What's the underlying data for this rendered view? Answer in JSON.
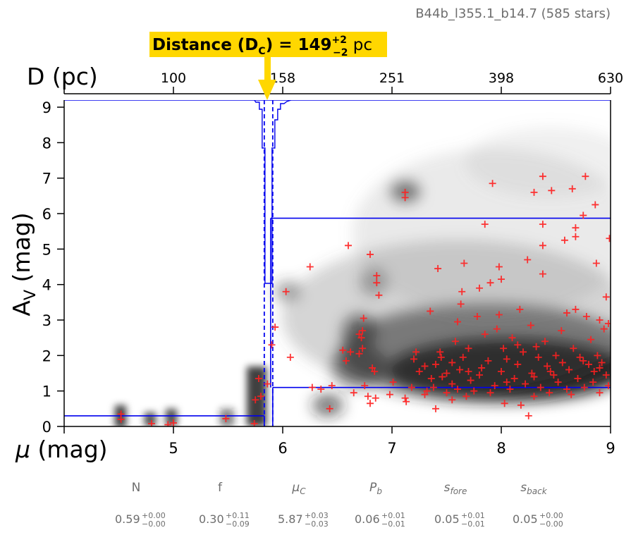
{
  "cloud_label": "B44b_l355.1_b14.7 (585 stars)",
  "distance_box": {
    "prefix": "Distance (D",
    "subscript": "C",
    "middle": ") = 149",
    "sup": "+2",
    "sub": "−2",
    "unit": " pc",
    "color": "#ffd700"
  },
  "chart_data": {
    "type": "scatter",
    "title": "",
    "xlabel": "μ (mag)",
    "ylabel": "A_V (mag)",
    "ylabel_parts": {
      "main": "A",
      "sub": "V",
      "rest": " (mag)"
    },
    "top_axis_label": "D (pc)",
    "xlim": [
      4,
      9
    ],
    "ylim": [
      0,
      9.2
    ],
    "x_ticks": [
      4,
      5,
      6,
      7,
      8,
      9
    ],
    "x_tick_labels": [
      "",
      "5",
      "6",
      "7",
      "8",
      "9"
    ],
    "y_ticks": [
      0,
      1,
      2,
      3,
      4,
      5,
      6,
      7,
      8,
      9
    ],
    "y_tick_labels": [
      "0",
      "1",
      "2",
      "3",
      "4",
      "5",
      "6",
      "7",
      "8",
      "9"
    ],
    "top_ticks_mu": [
      5,
      6.0,
      7.0,
      8.0,
      9.0
    ],
    "top_tick_labels": [
      "100",
      "158",
      "251",
      "398",
      "630"
    ],
    "colors": {
      "stars": "#ff2020",
      "model": "#0000ee",
      "arrow": "#ffd700"
    },
    "model_step": {
      "mu_c": 5.87,
      "av_fore": 0.3,
      "av_back_low": 1.1,
      "av_back_high": 5.87
    },
    "stars": [
      [
        4.52,
        0.35
      ],
      [
        4.52,
        0.2
      ],
      [
        4.8,
        0.08
      ],
      [
        4.95,
        0.05
      ],
      [
        5.0,
        0.1
      ],
      [
        5.48,
        0.22
      ],
      [
        5.74,
        0.08
      ],
      [
        5.75,
        0.75
      ],
      [
        5.78,
        1.35
      ],
      [
        5.8,
        0.85
      ],
      [
        5.86,
        1.2
      ],
      [
        5.9,
        2.3
      ],
      [
        5.93,
        2.8
      ],
      [
        6.03,
        3.8
      ],
      [
        6.07,
        1.95
      ],
      [
        6.25,
        4.5
      ],
      [
        6.27,
        1.1
      ],
      [
        6.35,
        1.05
      ],
      [
        6.43,
        0.5
      ],
      [
        6.45,
        1.15
      ],
      [
        6.55,
        2.15
      ],
      [
        6.58,
        1.85
      ],
      [
        6.6,
        5.1
      ],
      [
        6.62,
        2.1
      ],
      [
        6.65,
        0.95
      ],
      [
        6.7,
        2.05
      ],
      [
        6.7,
        2.6
      ],
      [
        6.72,
        2.5
      ],
      [
        6.73,
        2.7
      ],
      [
        6.73,
        2.2
      ],
      [
        6.74,
        3.05
      ],
      [
        6.75,
        1.15
      ],
      [
        6.78,
        0.85
      ],
      [
        6.8,
        4.85
      ],
      [
        6.8,
        0.65
      ],
      [
        6.82,
        1.65
      ],
      [
        6.84,
        1.55
      ],
      [
        6.85,
        0.8
      ],
      [
        6.86,
        4.25
      ],
      [
        6.86,
        4.05
      ],
      [
        6.88,
        3.7
      ],
      [
        6.98,
        0.9
      ],
      [
        7.01,
        1.25
      ],
      [
        7.12,
        6.6
      ],
      [
        7.12,
        6.45
      ],
      [
        7.12,
        0.8
      ],
      [
        7.13,
        0.7
      ],
      [
        7.18,
        1.1
      ],
      [
        7.2,
        1.9
      ],
      [
        7.22,
        2.1
      ],
      [
        7.25,
        1.55
      ],
      [
        7.3,
        0.9
      ],
      [
        7.32,
        1.0
      ],
      [
        7.35,
        3.25
      ],
      [
        7.36,
        1.35
      ],
      [
        7.38,
        1.1
      ],
      [
        7.4,
        0.5
      ],
      [
        7.4,
        1.75
      ],
      [
        7.42,
        4.45
      ],
      [
        7.44,
        2.1
      ],
      [
        7.46,
        1.4
      ],
      [
        7.5,
        0.95
      ],
      [
        7.5,
        1.5
      ],
      [
        7.55,
        1.8
      ],
      [
        7.55,
        0.75
      ],
      [
        7.58,
        2.4
      ],
      [
        7.6,
        2.95
      ],
      [
        7.6,
        1.05
      ],
      [
        7.62,
        1.6
      ],
      [
        7.63,
        3.45
      ],
      [
        7.64,
        3.8
      ],
      [
        7.65,
        1.95
      ],
      [
        7.66,
        4.6
      ],
      [
        7.68,
        0.85
      ],
      [
        7.7,
        2.2
      ],
      [
        7.72,
        1.3
      ],
      [
        7.75,
        1.0
      ],
      [
        7.78,
        3.1
      ],
      [
        7.8,
        3.9
      ],
      [
        7.82,
        1.65
      ],
      [
        7.85,
        5.7
      ],
      [
        7.85,
        2.6
      ],
      [
        7.88,
        1.85
      ],
      [
        7.9,
        4.05
      ],
      [
        7.92,
        6.85
      ],
      [
        7.94,
        1.15
      ],
      [
        7.96,
        2.75
      ],
      [
        7.98,
        3.15
      ],
      [
        7.98,
        4.5
      ],
      [
        8.0,
        4.15
      ],
      [
        8.0,
        1.55
      ],
      [
        8.02,
        2.2
      ],
      [
        8.03,
        0.65
      ],
      [
        8.05,
        1.9
      ],
      [
        8.08,
        1.05
      ],
      [
        8.1,
        2.5
      ],
      [
        8.12,
        1.35
      ],
      [
        8.15,
        1.75
      ],
      [
        8.17,
        3.3
      ],
      [
        8.18,
        0.6
      ],
      [
        8.2,
        2.1
      ],
      [
        8.22,
        1.2
      ],
      [
        8.24,
        4.7
      ],
      [
        8.25,
        0.3
      ],
      [
        8.27,
        2.85
      ],
      [
        8.28,
        1.5
      ],
      [
        8.3,
        6.6
      ],
      [
        8.3,
        0.85
      ],
      [
        8.32,
        2.25
      ],
      [
        8.34,
        1.95
      ],
      [
        8.36,
        1.1
      ],
      [
        8.38,
        7.05
      ],
      [
        8.38,
        5.7
      ],
      [
        8.38,
        5.1
      ],
      [
        8.38,
        4.3
      ],
      [
        8.4,
        2.4
      ],
      [
        8.42,
        1.7
      ],
      [
        8.44,
        0.95
      ],
      [
        8.46,
        6.65
      ],
      [
        8.48,
        1.45
      ],
      [
        8.5,
        2.0
      ],
      [
        8.52,
        1.25
      ],
      [
        8.55,
        2.7
      ],
      [
        8.56,
        1.8
      ],
      [
        8.58,
        5.25
      ],
      [
        8.6,
        3.2
      ],
      [
        8.62,
        1.6
      ],
      [
        8.64,
        0.9
      ],
      [
        8.65,
        6.7
      ],
      [
        8.66,
        2.2
      ],
      [
        8.68,
        5.6
      ],
      [
        8.68,
        5.35
      ],
      [
        8.68,
        3.3
      ],
      [
        8.7,
        1.35
      ],
      [
        8.72,
        1.95
      ],
      [
        8.75,
        5.95
      ],
      [
        8.76,
        1.1
      ],
      [
        8.77,
        7.05
      ],
      [
        8.78,
        3.1
      ],
      [
        8.8,
        1.75
      ],
      [
        8.82,
        2.45
      ],
      [
        8.84,
        1.25
      ],
      [
        8.85,
        1.55
      ],
      [
        8.86,
        6.25
      ],
      [
        8.87,
        4.6
      ],
      [
        8.88,
        2.0
      ],
      [
        8.9,
        3.0
      ],
      [
        8.9,
        0.95
      ],
      [
        8.92,
        1.8
      ],
      [
        8.94,
        2.75
      ],
      [
        8.96,
        1.45
      ],
      [
        8.96,
        3.65
      ],
      [
        8.98,
        2.9
      ],
      [
        8.98,
        1.15
      ],
      [
        8.99,
        5.3
      ],
      [
        8.3,
        1.4
      ],
      [
        8.05,
        1.25
      ],
      [
        7.8,
        1.45
      ],
      [
        7.55,
        1.2
      ],
      [
        7.3,
        1.7
      ],
      [
        7.9,
        0.95
      ],
      [
        8.45,
        1.55
      ],
      [
        8.6,
        1.05
      ],
      [
        8.75,
        1.85
      ],
      [
        8.9,
        1.65
      ],
      [
        8.15,
        2.3
      ],
      [
        7.7,
        1.55
      ],
      [
        7.45,
        1.95
      ]
    ]
  },
  "params": [
    {
      "name": "N",
      "italic": false,
      "name_sub": "",
      "value": "0.59",
      "sup": "+0.00",
      "sub": "−0.00"
    },
    {
      "name": "f",
      "italic": false,
      "name_sub": "",
      "value": "0.30",
      "sup": "+0.11",
      "sub": "−0.09"
    },
    {
      "name": "μ",
      "italic": true,
      "name_sub": "C",
      "value": "5.87",
      "sup": "+0.03",
      "sub": "−0.03"
    },
    {
      "name": "P",
      "italic": true,
      "name_sub": "b",
      "value": "0.06",
      "sup": "+0.01",
      "sub": "−0.01"
    },
    {
      "name": "s",
      "italic": true,
      "name_sub": "fore",
      "value": "0.05",
      "sup": "+0.01",
      "sub": "−0.01"
    },
    {
      "name": "s",
      "italic": true,
      "name_sub": "back",
      "value": "0.05",
      "sup": "+0.00",
      "sub": "−0.00"
    }
  ]
}
